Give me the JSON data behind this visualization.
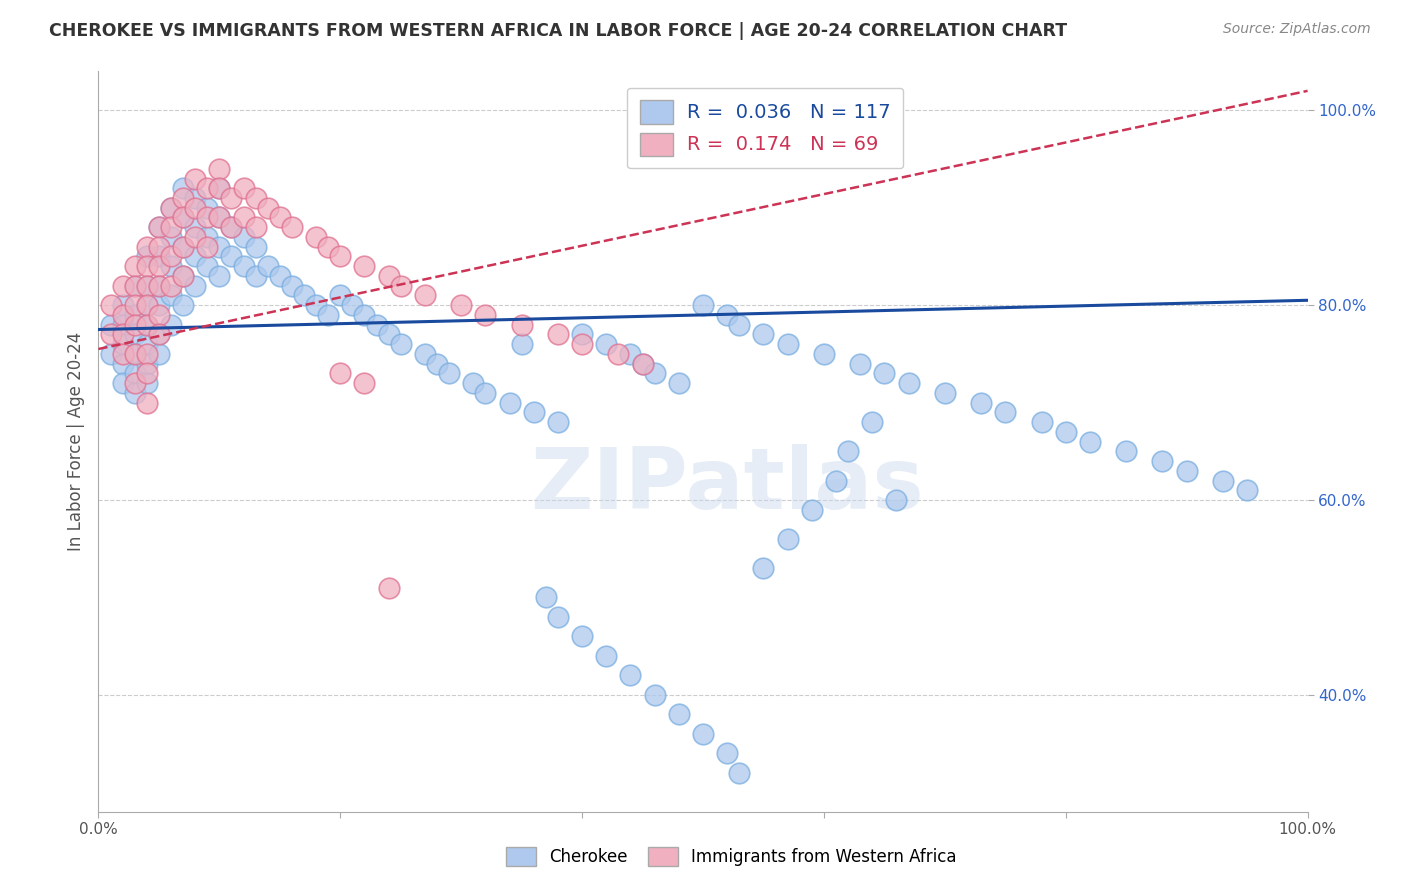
{
  "title": "CHEROKEE VS IMMIGRANTS FROM WESTERN AFRICA IN LABOR FORCE | AGE 20-24 CORRELATION CHART",
  "source": "Source: ZipAtlas.com",
  "ylabel": "In Labor Force | Age 20-24",
  "xlim": [
    0.0,
    1.0
  ],
  "ylim": [
    0.28,
    1.04
  ],
  "yticks": [
    0.4,
    0.6,
    0.8,
    1.0
  ],
  "ytick_labels": [
    "40.0%",
    "60.0%",
    "80.0%",
    "100.0%"
  ],
  "xticks": [
    0.0,
    0.2,
    0.4,
    0.6,
    0.8,
    1.0
  ],
  "xtick_labels": [
    "0.0%",
    "",
    "",
    "",
    "",
    "100.0%"
  ],
  "cherokee_R": 0.036,
  "cherokee_N": 117,
  "western_africa_R": 0.174,
  "western_africa_N": 69,
  "cherokee_color": "#aec9ed",
  "cherokee_edge": "#7aaee0",
  "western_africa_color": "#f0b0c0",
  "western_africa_edge": "#e07090",
  "trend_cherokee_color": "#1a4a9e",
  "trend_wa_color": "#cc3355",
  "legend_label_cherokee": "Cherokee",
  "legend_label_wa": "Immigrants from Western Africa",
  "watermark": "ZIPatlas",
  "background_color": "#ffffff",
  "grid_color": "#cccccc",
  "cherokee_x": [
    0.01,
    0.01,
    0.02,
    0.02,
    0.02,
    0.02,
    0.02,
    0.03,
    0.03,
    0.03,
    0.03,
    0.03,
    0.03,
    0.04,
    0.04,
    0.04,
    0.04,
    0.04,
    0.04,
    0.04,
    0.05,
    0.05,
    0.05,
    0.05,
    0.05,
    0.05,
    0.06,
    0.06,
    0.06,
    0.06,
    0.06,
    0.07,
    0.07,
    0.07,
    0.07,
    0.07,
    0.08,
    0.08,
    0.08,
    0.08,
    0.09,
    0.09,
    0.09,
    0.1,
    0.1,
    0.1,
    0.1,
    0.11,
    0.11,
    0.12,
    0.12,
    0.13,
    0.13,
    0.14,
    0.15,
    0.16,
    0.17,
    0.18,
    0.19,
    0.2,
    0.21,
    0.22,
    0.23,
    0.24,
    0.25,
    0.27,
    0.28,
    0.29,
    0.31,
    0.32,
    0.34,
    0.35,
    0.36,
    0.38,
    0.4,
    0.42,
    0.44,
    0.45,
    0.46,
    0.48,
    0.5,
    0.52,
    0.53,
    0.55,
    0.57,
    0.6,
    0.63,
    0.65,
    0.67,
    0.7,
    0.73,
    0.75,
    0.78,
    0.8,
    0.82,
    0.85,
    0.88,
    0.9,
    0.93,
    0.95,
    0.37,
    0.38,
    0.4,
    0.42,
    0.44,
    0.46,
    0.48,
    0.5,
    0.52,
    0.53,
    0.55,
    0.57,
    0.59,
    0.61,
    0.62,
    0.64,
    0.66
  ],
  "cherokee_y": [
    0.78,
    0.75,
    0.8,
    0.78,
    0.76,
    0.74,
    0.72,
    0.82,
    0.79,
    0.77,
    0.75,
    0.73,
    0.71,
    0.85,
    0.82,
    0.8,
    0.78,
    0.76,
    0.74,
    0.72,
    0.88,
    0.85,
    0.82,
    0.8,
    0.77,
    0.75,
    0.9,
    0.87,
    0.84,
    0.81,
    0.78,
    0.92,
    0.89,
    0.86,
    0.83,
    0.8,
    0.91,
    0.88,
    0.85,
    0.82,
    0.9,
    0.87,
    0.84,
    0.92,
    0.89,
    0.86,
    0.83,
    0.88,
    0.85,
    0.87,
    0.84,
    0.86,
    0.83,
    0.84,
    0.83,
    0.82,
    0.81,
    0.8,
    0.79,
    0.81,
    0.8,
    0.79,
    0.78,
    0.77,
    0.76,
    0.75,
    0.74,
    0.73,
    0.72,
    0.71,
    0.7,
    0.76,
    0.69,
    0.68,
    0.77,
    0.76,
    0.75,
    0.74,
    0.73,
    0.72,
    0.8,
    0.79,
    0.78,
    0.77,
    0.76,
    0.75,
    0.74,
    0.73,
    0.72,
    0.71,
    0.7,
    0.69,
    0.68,
    0.67,
    0.66,
    0.65,
    0.64,
    0.63,
    0.62,
    0.61,
    0.5,
    0.48,
    0.46,
    0.44,
    0.42,
    0.4,
    0.38,
    0.36,
    0.34,
    0.32,
    0.53,
    0.56,
    0.59,
    0.62,
    0.65,
    0.68,
    0.6
  ],
  "wa_x": [
    0.01,
    0.01,
    0.02,
    0.02,
    0.02,
    0.02,
    0.03,
    0.03,
    0.03,
    0.03,
    0.03,
    0.03,
    0.04,
    0.04,
    0.04,
    0.04,
    0.04,
    0.04,
    0.04,
    0.04,
    0.05,
    0.05,
    0.05,
    0.05,
    0.05,
    0.05,
    0.06,
    0.06,
    0.06,
    0.06,
    0.07,
    0.07,
    0.07,
    0.07,
    0.08,
    0.08,
    0.08,
    0.09,
    0.09,
    0.09,
    0.1,
    0.1,
    0.1,
    0.11,
    0.11,
    0.12,
    0.12,
    0.13,
    0.13,
    0.14,
    0.15,
    0.16,
    0.18,
    0.19,
    0.2,
    0.22,
    0.24,
    0.25,
    0.27,
    0.3,
    0.32,
    0.35,
    0.38,
    0.4,
    0.43,
    0.45,
    0.2,
    0.22,
    0.24
  ],
  "wa_y": [
    0.8,
    0.77,
    0.82,
    0.79,
    0.77,
    0.75,
    0.84,
    0.82,
    0.8,
    0.78,
    0.75,
    0.72,
    0.86,
    0.84,
    0.82,
    0.8,
    0.78,
    0.75,
    0.73,
    0.7,
    0.88,
    0.86,
    0.84,
    0.82,
    0.79,
    0.77,
    0.9,
    0.88,
    0.85,
    0.82,
    0.91,
    0.89,
    0.86,
    0.83,
    0.93,
    0.9,
    0.87,
    0.92,
    0.89,
    0.86,
    0.94,
    0.92,
    0.89,
    0.91,
    0.88,
    0.92,
    0.89,
    0.91,
    0.88,
    0.9,
    0.89,
    0.88,
    0.87,
    0.86,
    0.85,
    0.84,
    0.83,
    0.82,
    0.81,
    0.8,
    0.79,
    0.78,
    0.77,
    0.76,
    0.75,
    0.74,
    0.73,
    0.72,
    0.51
  ],
  "trend_cherokee_x0": 0.0,
  "trend_cherokee_y0": 0.775,
  "trend_cherokee_x1": 1.0,
  "trend_cherokee_y1": 0.805,
  "trend_wa_x0": 0.0,
  "trend_wa_y0": 0.755,
  "trend_wa_x1": 1.0,
  "trend_wa_y1": 1.02
}
